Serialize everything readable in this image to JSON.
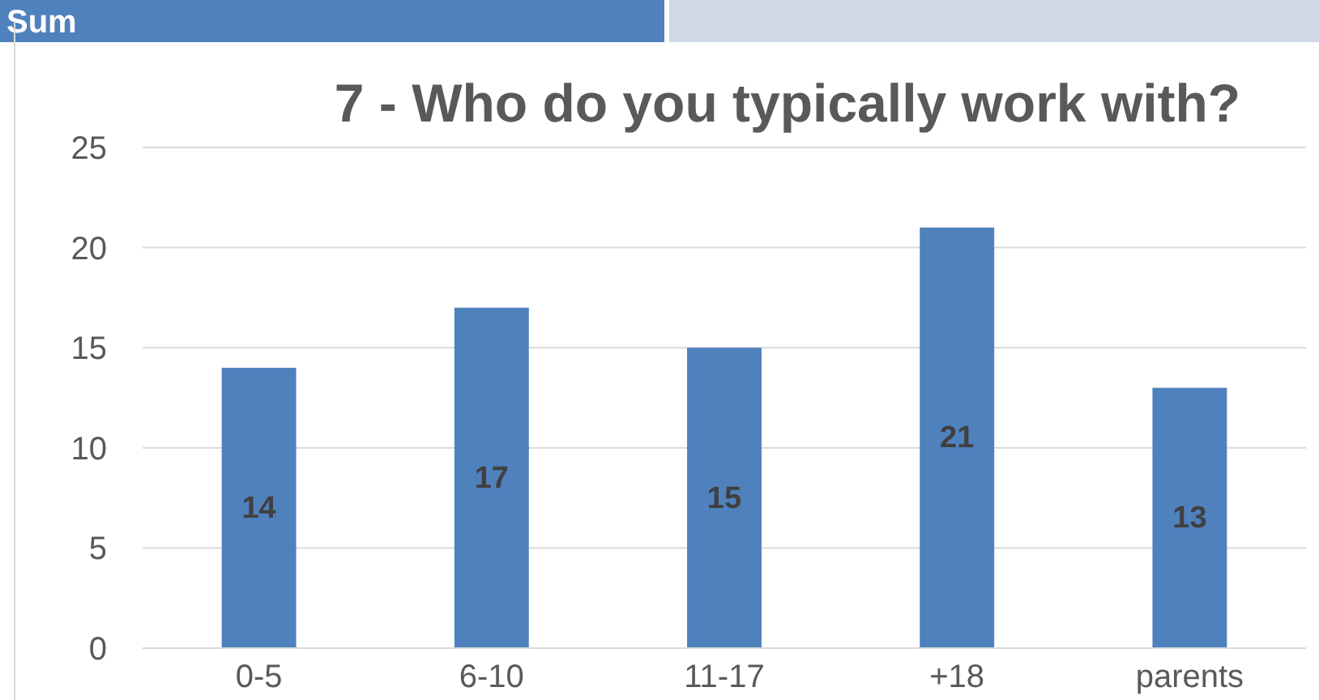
{
  "chart_data": {
    "type": "bar",
    "title": "7 - Who do you typically work with?",
    "annotations": [
      "Sum"
    ],
    "categories": [
      "0-5",
      "6-10",
      "11-17",
      "+18",
      "parents"
    ],
    "values": [
      14,
      17,
      15,
      21,
      13
    ],
    "color": "#4f81bd",
    "ylim": [
      0,
      25
    ],
    "yticks": [
      0,
      5,
      10,
      15,
      20,
      25
    ],
    "grid": "y",
    "data_labels": true
  }
}
